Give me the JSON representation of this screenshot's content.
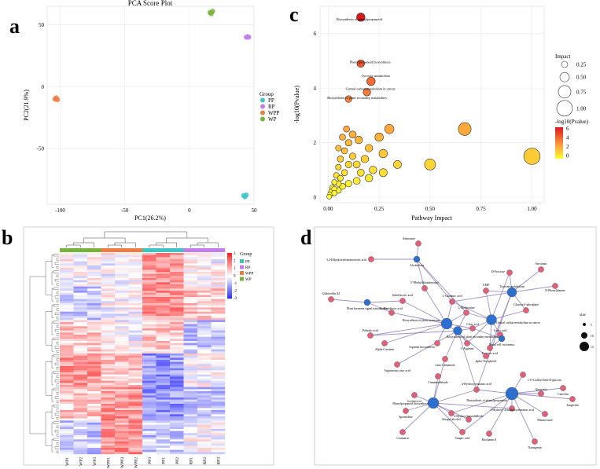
{
  "panel_labels": {
    "a": "a",
    "b": "b",
    "c": "c",
    "d": "d"
  },
  "colors": {
    "PP": "#3fc4c4",
    "RP": "#c07ee6",
    "WPP": "#ef7b45",
    "WP": "#77b33a",
    "node_red": "#e0607a",
    "node_blue": "#2d6fcf"
  },
  "chart_data": [
    {
      "type": "scatter",
      "title": "PCA Score Plot",
      "xlabel": "PC1(26.2%)",
      "ylabel": "PC2(21.9%)",
      "xlim": [
        -110,
        50
      ],
      "ylim": [
        -95,
        65
      ],
      "xticks": [
        "-100",
        "-50",
        "0",
        "50"
      ],
      "yticks": [
        "50",
        "0",
        "-50"
      ],
      "legend_title": "Group",
      "legend": [
        "PP",
        "RP",
        "WPP",
        "WP"
      ],
      "series": [
        {
          "name": "PP",
          "points": [
            [
              42,
              -88
            ],
            [
              44,
              -87.5
            ],
            [
              43,
              -89
            ]
          ]
        },
        {
          "name": "RP",
          "points": [
            [
              44,
              40
            ],
            [
              46,
              40
            ],
            [
              45,
              40.5
            ]
          ]
        },
        {
          "name": "WPP",
          "points": [
            [
              -104,
              -10
            ],
            [
              -103,
              -9
            ],
            [
              -102,
              -10.5
            ]
          ]
        },
        {
          "name": "WP",
          "points": [
            [
              16,
              60
            ],
            [
              18,
              61
            ],
            [
              17,
              59
            ]
          ]
        }
      ]
    },
    {
      "type": "scatter",
      "xlabel": "Pathway Impact",
      "ylabel": "-log10(Pvalue)",
      "xlim": [
        -0.04,
        1.06
      ],
      "ylim": [
        -0.2,
        7
      ],
      "xticks": [
        "0.00",
        "0.25",
        "0.50",
        "0.75",
        "1.00"
      ],
      "yticks": [
        "0",
        "2",
        "4",
        "6"
      ],
      "size_legend_title": "Impact",
      "size_legend": [
        "0.25",
        "0.50",
        "0.75",
        "1.00"
      ],
      "color_legend_title": "-log10(Pvalue)",
      "color_legend": [
        "6",
        "4",
        "2",
        "0"
      ],
      "labels": [
        "Biosynthesis of phenylpropanoids",
        "Phenylpropanoid biosynthesis",
        "Tyrosine metabolism",
        "Central carbon metabolism in cancer",
        "Biosynthesis of plant secondary metabolites"
      ],
      "points": [
        [
          0.16,
          6.6,
          0.12
        ],
        [
          0.16,
          4.9,
          0.1
        ],
        [
          0.21,
          4.25,
          0.12
        ],
        [
          0.19,
          3.85,
          0.1
        ],
        [
          0.1,
          3.6,
          0.08
        ],
        [
          1.0,
          1.5,
          0.3
        ],
        [
          0.67,
          2.5,
          0.22
        ],
        [
          0.5,
          1.2,
          0.18
        ],
        [
          0.3,
          2.5,
          0.14
        ],
        [
          0.25,
          2.2,
          0.12
        ],
        [
          0.27,
          1.6,
          0.12
        ],
        [
          0.34,
          1.2,
          0.11
        ],
        [
          0.2,
          1.8,
          0.1
        ],
        [
          0.15,
          2.1,
          0.1
        ],
        [
          0.12,
          2.3,
          0.09
        ],
        [
          0.1,
          2.0,
          0.08
        ],
        [
          0.08,
          1.7,
          0.07
        ],
        [
          0.06,
          1.4,
          0.07
        ],
        [
          0.05,
          1.1,
          0.06
        ],
        [
          0.04,
          0.8,
          0.06
        ],
        [
          0.03,
          0.55,
          0.05
        ],
        [
          0.02,
          0.35,
          0.05
        ],
        [
          0.015,
          0.2,
          0.05
        ],
        [
          0.01,
          0.1,
          0.05
        ],
        [
          0.005,
          0.02,
          0.04
        ],
        [
          0.18,
          1.4,
          0.1
        ],
        [
          0.22,
          1.0,
          0.1
        ],
        [
          0.16,
          0.9,
          0.09
        ],
        [
          0.14,
          1.2,
          0.09
        ],
        [
          0.12,
          1.5,
          0.08
        ],
        [
          0.1,
          1.2,
          0.08
        ],
        [
          0.08,
          0.9,
          0.07
        ],
        [
          0.06,
          0.7,
          0.06
        ],
        [
          0.05,
          0.5,
          0.06
        ],
        [
          0.03,
          0.3,
          0.05
        ],
        [
          0.27,
          0.9,
          0.11
        ],
        [
          0.2,
          0.7,
          0.1
        ],
        [
          0.14,
          0.6,
          0.09
        ],
        [
          0.1,
          0.5,
          0.08
        ],
        [
          0.07,
          0.4,
          0.07
        ],
        [
          0.05,
          0.25,
          0.06
        ],
        [
          0.03,
          0.15,
          0.05
        ],
        [
          0.09,
          2.5,
          0.07
        ],
        [
          0.07,
          2.2,
          0.07
        ],
        [
          0.05,
          1.8,
          0.06
        ]
      ]
    },
    {
      "type": "heatmap",
      "columns": [
        "WP1",
        "WP2",
        "WP3",
        "WPP1",
        "WPP3",
        "WPP2",
        "PP3",
        "PP1",
        "PP2",
        "RP1",
        "RP2",
        "RP3"
      ],
      "column_groups": [
        "WP",
        "WP",
        "WP",
        "WPP",
        "WPP",
        "WPP",
        "PP",
        "PP",
        "PP",
        "RP",
        "RP",
        "RP"
      ],
      "legend_title": "Group",
      "group_legend": [
        "PP",
        "RP",
        "WPP",
        "WP"
      ],
      "scale": [
        "3",
        "2",
        "1",
        "0",
        "-1",
        "-2",
        "-3"
      ],
      "block_pattern": [
        [
          0,
          0,
          0,
          0,
          0,
          0,
          2,
          2,
          2,
          0,
          0,
          0
        ],
        [
          -1,
          -1,
          -1,
          0,
          0,
          0,
          2,
          2,
          2,
          1,
          1,
          1
        ],
        [
          1,
          1,
          1,
          0,
          0,
          0,
          1,
          1,
          1,
          -1,
          -1,
          -1
        ],
        [
          2,
          2,
          2,
          1,
          1,
          1,
          -2,
          -2,
          -2,
          0,
          0,
          0
        ],
        [
          1,
          1,
          1,
          2,
          2,
          2,
          -2,
          -2,
          -2,
          -1,
          -1,
          -1
        ],
        [
          -1,
          -1,
          -1,
          2,
          2,
          2,
          -1,
          -1,
          -1,
          0,
          0,
          0
        ]
      ]
    }
  ],
  "network": {
    "size_legend_title": "size",
    "size_legend": [
      "5",
      "10",
      "15"
    ],
    "nodes": [
      {
        "name": "Adenosine",
        "type": "r"
      },
      {
        "name": "3,4-Dihydroxybenzeneacetic acid",
        "type": "r"
      },
      {
        "name": "Alcoholism",
        "type": "b"
      },
      {
        "name": "D-Fructose",
        "type": "r"
      },
      {
        "name": "Serotonin",
        "type": "r"
      },
      {
        "name": "UMP",
        "type": "r"
      },
      {
        "name": "Tyrosine metabolism",
        "type": "b"
      },
      {
        "name": "D-Phenylalanine",
        "type": "r"
      },
      {
        "name": "5'-Methylthioadenosine",
        "type": "r"
      },
      {
        "name": "L-Glutamic acid",
        "type": "r"
      },
      {
        "name": "Glucose 6-phosphate",
        "type": "r"
      },
      {
        "name": "Gibberellin A4",
        "type": "r"
      },
      {
        "name": "Indoleacetic acid",
        "type": "r"
      },
      {
        "name": "L-Methionine",
        "type": "r"
      },
      {
        "name": "Plant hormone signal transduction",
        "type": "b"
      },
      {
        "name": "L-Histidinoic acid",
        "type": "r"
      },
      {
        "name": "Biosynthesis of plant hormones",
        "type": "b"
      },
      {
        "name": "Central carbon metabolism in cancer",
        "type": "b"
      },
      {
        "name": "Citric acid",
        "type": "r"
      },
      {
        "name": "Palmitic acid",
        "type": "r"
      },
      {
        "name": "Biosynthesis of plant secondary metabolites",
        "type": "b"
      },
      {
        "name": "Arginine biosynthesis",
        "type": "r"
      },
      {
        "name": "Lactic acid",
        "type": "r"
      },
      {
        "name": "Alpha-Carotene",
        "type": "r"
      },
      {
        "name": "L-Arginine",
        "type": "r"
      },
      {
        "name": "Renal cell carcinoma",
        "type": "b"
      },
      {
        "name": "Fumaric acid",
        "type": "r"
      },
      {
        "name": "alpha-Tocopherol",
        "type": "r"
      },
      {
        "name": "trans-Cinnamate",
        "type": "r"
      },
      {
        "name": "Argininosuccinic acid",
        "type": "r"
      },
      {
        "name": "Cinnamaldehyde",
        "type": "r"
      },
      {
        "name": "1-O-Galloyl-beta-D-glucose",
        "type": "r"
      },
      {
        "name": "4-Hydroxycinnamic acid",
        "type": "r"
      },
      {
        "name": "Isochavicol",
        "type": "r"
      },
      {
        "name": "Biosynthesis of phenylpropanoids",
        "type": "b"
      },
      {
        "name": "Quercetin",
        "type": "r"
      },
      {
        "name": "Catechin",
        "type": "r"
      },
      {
        "name": "Phenylpropanoid biosynthesis",
        "type": "b"
      },
      {
        "name": "Tangeritin",
        "type": "r"
      },
      {
        "name": "Spermidine",
        "type": "r"
      },
      {
        "name": "Sinapyl alcohol",
        "type": "r"
      },
      {
        "name": "3-Hydroxy-4-methoxycinnamic acid",
        "type": "r"
      },
      {
        "name": "4-Hydroxybenzaldehyde",
        "type": "r"
      },
      {
        "name": "Matairesinol",
        "type": "r"
      },
      {
        "name": "Coumarin",
        "type": "r"
      },
      {
        "name": "Sinapic acid",
        "type": "r"
      },
      {
        "name": "Biochanin A",
        "type": "r"
      },
      {
        "name": "Naringenin",
        "type": "r"
      }
    ]
  }
}
